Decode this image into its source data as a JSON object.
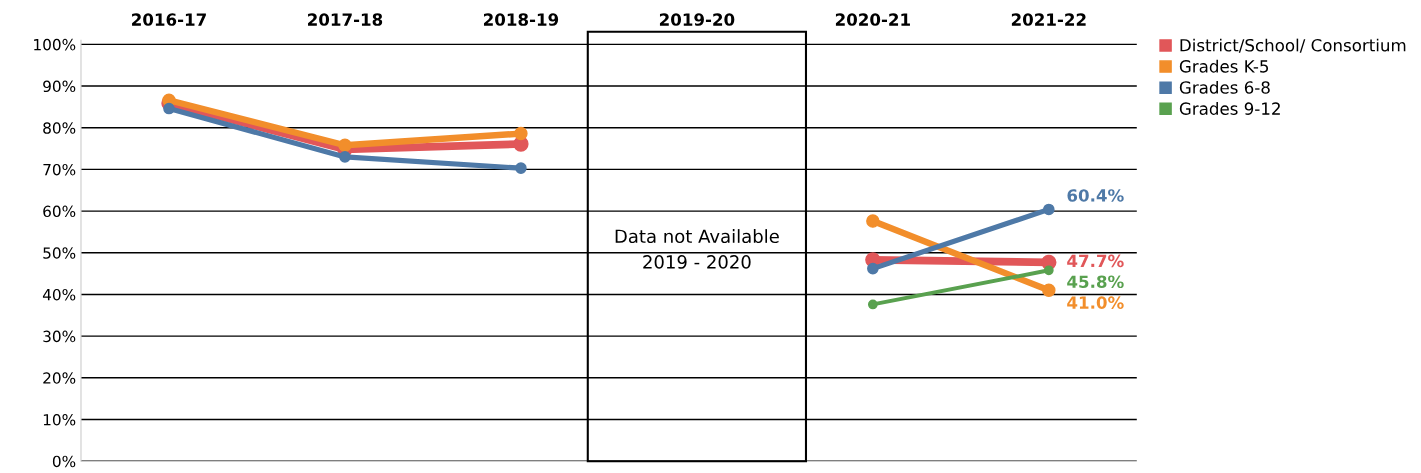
{
  "chart_data": {
    "type": "line",
    "categories": [
      "2016-17",
      "2017-18",
      "2018-19",
      "2019-20",
      "2020-21",
      "2021-22"
    ],
    "series": [
      {
        "name": "District/School/ Consortium",
        "color": "#e15759",
        "values": [
          85.9,
          74.8,
          76.1,
          null,
          48.3,
          47.7
        ],
        "value_labels": [
          null,
          null,
          null,
          null,
          null,
          "47.7%"
        ]
      },
      {
        "name": "Grades K-5",
        "color": "#f28e2b",
        "values": [
          86.6,
          75.8,
          78.6,
          null,
          57.6,
          41.0
        ],
        "value_labels": [
          null,
          null,
          null,
          null,
          null,
          "41.0%"
        ]
      },
      {
        "name": "Grades 6-8",
        "color": "#4e79a7",
        "values": [
          84.6,
          73.0,
          70.3,
          null,
          46.2,
          60.4
        ],
        "value_labels": [
          null,
          null,
          null,
          null,
          null,
          "60.4%"
        ]
      },
      {
        "name": "Grades 9-12",
        "color": "#59a14f",
        "values": [
          null,
          null,
          null,
          null,
          37.6,
          45.8
        ],
        "value_labels": [
          null,
          null,
          null,
          null,
          null,
          "45.8%"
        ]
      }
    ],
    "ylim": [
      0,
      101
    ],
    "yticks": [
      {
        "value": 0,
        "label": "0%"
      },
      {
        "value": 10,
        "label": "10%"
      },
      {
        "value": 20,
        "label": "20%"
      },
      {
        "value": 30,
        "label": "30%"
      },
      {
        "value": 40,
        "label": "40%"
      },
      {
        "value": 50,
        "label": "50%"
      },
      {
        "value": 60,
        "label": "60%"
      },
      {
        "value": 70,
        "label": "70%"
      },
      {
        "value": 80,
        "label": "80%"
      },
      {
        "value": 90,
        "label": "90%"
      },
      {
        "value": 100,
        "label": "100%"
      }
    ],
    "grid": "y",
    "legend": "right",
    "marker": "circle",
    "line_style": "solid",
    "annotations": [
      "Data not Available\n2019 - 2020"
    ]
  }
}
